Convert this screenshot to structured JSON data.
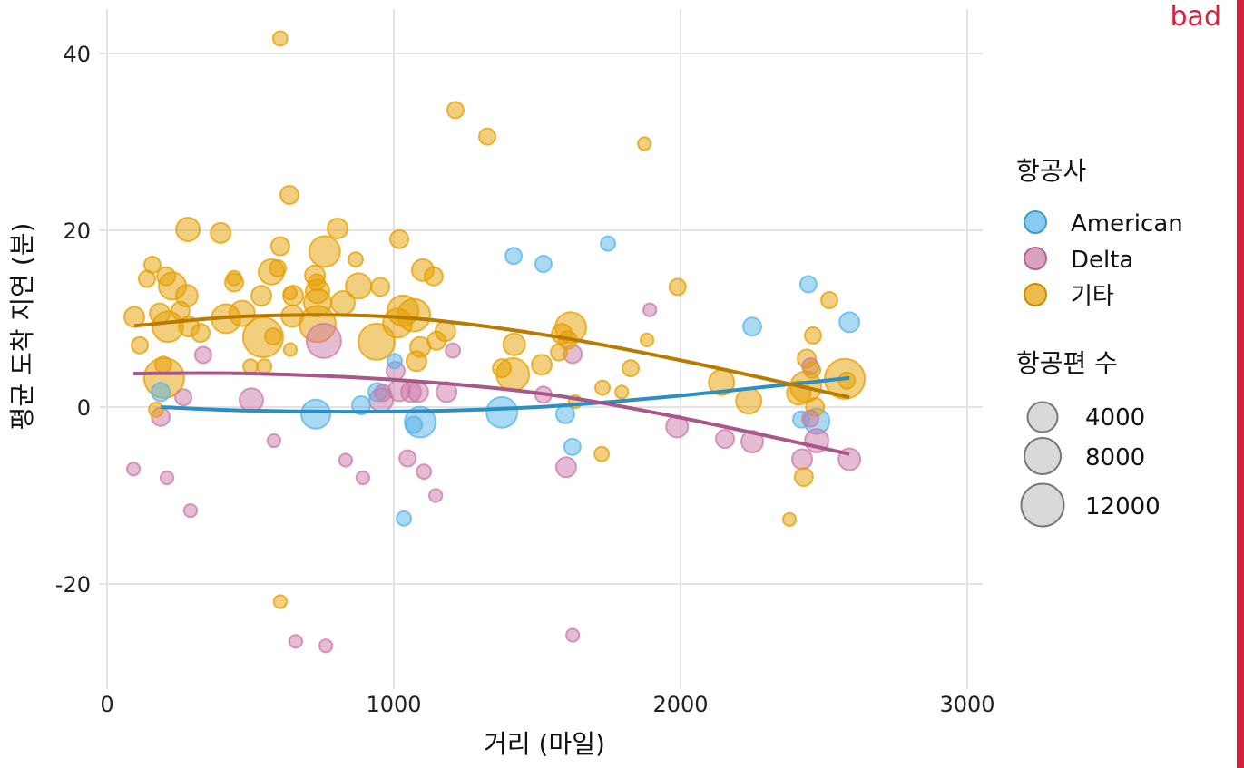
{
  "badge": {
    "label": "bad",
    "color": "#d32240"
  },
  "chart_data": {
    "type": "scatter",
    "title": "",
    "xlabel": "거리 (마일)",
    "ylabel": "평균 도착 지연 (분)",
    "xlim": [
      -25,
      3050
    ],
    "ylim": [
      -31,
      45
    ],
    "xticks": [
      0,
      1000,
      2000,
      3000
    ],
    "yticks": [
      -20,
      0,
      20,
      40
    ],
    "xtick_labels": [
      "0",
      "1000",
      "2000",
      "3000"
    ],
    "ytick_labels": [
      "-20",
      "0",
      "20",
      "40"
    ],
    "grid": true,
    "legend_placement": "right",
    "color_legend": {
      "title": "항공사",
      "entries": [
        "American",
        "Delta",
        "기타"
      ]
    },
    "size_legend": {
      "title": "항공편 수",
      "values": [
        4000,
        8000,
        12000
      ],
      "labels": [
        "4000",
        "8000",
        "12000"
      ]
    },
    "series": [
      {
        "name": "American",
        "color": "#56B4E9",
        "line_color": "#2b8fc4",
        "points": [
          [
            187,
            1.7,
            625
          ],
          [
            728,
            -0.8,
            3900
          ],
          [
            886,
            0.2,
            625
          ],
          [
            943,
            1.7,
            625
          ],
          [
            1003,
            5.2,
            150
          ],
          [
            1035,
            -12.6,
            150
          ],
          [
            1070,
            -2,
            350
          ],
          [
            1092,
            -1.7,
            4700
          ],
          [
            1377,
            -0.6,
            4700
          ],
          [
            1418,
            17.1,
            350
          ],
          [
            1522,
            16.2,
            350
          ],
          [
            1598,
            -0.8,
            625
          ],
          [
            1623,
            -4.5,
            350
          ],
          [
            1747,
            18.5,
            150
          ],
          [
            2250,
            9.1,
            625
          ],
          [
            2446,
            13.9,
            350
          ],
          [
            2421,
            -1.4,
            350
          ],
          [
            2475,
            -1.6,
            2500
          ],
          [
            2589,
            9.6,
            980
          ]
        ],
        "trend": [
          [
            187,
            0
          ],
          [
            500,
            -0.4
          ],
          [
            1000,
            -0.5
          ],
          [
            1500,
            0
          ],
          [
            2000,
            1.3
          ],
          [
            2589,
            3.3
          ]
        ]
      },
      {
        "name": "Delta",
        "color": "#CC79A7",
        "line_color": "#a8578a",
        "points": [
          [
            92,
            -7,
            50
          ],
          [
            187,
            -1.1,
            625
          ],
          [
            209,
            -8,
            50
          ],
          [
            266,
            1.1,
            350
          ],
          [
            291,
            -11.7,
            50
          ],
          [
            335,
            5.9,
            350
          ],
          [
            503,
            0.8,
            1900
          ],
          [
            582,
            -3.8,
            50
          ],
          [
            658,
            -26.5,
            50
          ],
          [
            756,
            7.5,
            6600
          ],
          [
            763,
            -27,
            50
          ],
          [
            832,
            -6,
            50
          ],
          [
            892,
            -8,
            50
          ],
          [
            956,
            0.8,
            1900
          ],
          [
            962,
            1.6,
            350
          ],
          [
            1006,
            4.1,
            625
          ],
          [
            1019,
            1.9,
            1400
          ],
          [
            1048,
            -5.8,
            350
          ],
          [
            1060,
            1.7,
            980
          ],
          [
            1085,
            1.7,
            980
          ],
          [
            1105,
            -7.3,
            150
          ],
          [
            1146,
            -10,
            50
          ],
          [
            1184,
            1.7,
            980
          ],
          [
            1206,
            6.4,
            150
          ],
          [
            1522,
            1.4,
            350
          ],
          [
            1601,
            -6.8,
            980
          ],
          [
            1624,
            6,
            625
          ],
          [
            1624,
            -25.8,
            50
          ],
          [
            1893,
            11,
            50
          ],
          [
            1988,
            -2.2,
            1400
          ],
          [
            2155,
            -3.6,
            625
          ],
          [
            2250,
            -3.9,
            1400
          ],
          [
            2424,
            -5.9,
            980
          ],
          [
            2453,
            -1.3,
            350
          ],
          [
            2475,
            -3.8,
            1900
          ],
          [
            2453,
            4.6,
            350
          ],
          [
            2589,
            -5.9,
            1400
          ]
        ],
        "trend": [
          [
            92,
            3.8
          ],
          [
            500,
            3.8
          ],
          [
            1000,
            3.1
          ],
          [
            1500,
            1.6
          ],
          [
            2000,
            -1.2
          ],
          [
            2589,
            -5.3
          ]
        ]
      },
      {
        "name": "기타",
        "color": "#E69F00",
        "line_color": "#b97a00",
        "points": [
          [
            604,
            41.7,
            150
          ],
          [
            1215,
            33.6,
            350
          ],
          [
            1326,
            30.6,
            350
          ],
          [
            1874,
            29.8,
            50
          ],
          [
            636,
            24,
            625
          ],
          [
            282,
            20.1,
            1900
          ],
          [
            396,
            19.7,
            980
          ],
          [
            804,
            20.2,
            980
          ],
          [
            1019,
            19,
            625
          ],
          [
            604,
            18.2,
            625
          ],
          [
            759,
            17.6,
            4700
          ],
          [
            158,
            16.1,
            350
          ],
          [
            139,
            14.5,
            350
          ],
          [
            206,
            14.8,
            625
          ],
          [
            228,
            13.7,
            3200
          ],
          [
            278,
            12.6,
            1400
          ],
          [
            443,
            14.1,
            625
          ],
          [
            443,
            14.6,
            150
          ],
          [
            573,
            15.3,
            2500
          ],
          [
            595,
            15.7,
            350
          ],
          [
            725,
            14.9,
            980
          ],
          [
            731,
            14.1,
            350
          ],
          [
            734,
            13.1,
            1900
          ],
          [
            867,
            16.7,
            150
          ],
          [
            877,
            13.7,
            2500
          ],
          [
            953,
            13.6,
            625
          ],
          [
            1101,
            15.5,
            1400
          ],
          [
            1139,
            14.8,
            625
          ],
          [
            538,
            12.6,
            980
          ],
          [
            649,
            12.6,
            980
          ],
          [
            639,
            12.9,
            50
          ],
          [
            734,
            11.8,
            3200
          ],
          [
            823,
            11.8,
            1900
          ],
          [
            95,
            10.2,
            980
          ],
          [
            184,
            10.6,
            980
          ],
          [
            212,
            9.1,
            4700
          ],
          [
            285,
            9.1,
            980
          ],
          [
            256,
            10.9,
            625
          ],
          [
            326,
            8.4,
            625
          ],
          [
            415,
            10,
            3900
          ],
          [
            471,
            10.6,
            2500
          ],
          [
            544,
            7.9,
            10000
          ],
          [
            646,
            10.3,
            1400
          ],
          [
            734,
            9.4,
            7650
          ],
          [
            940,
            7.4,
            7650
          ],
          [
            1013,
            9.5,
            3900
          ],
          [
            1032,
            10.9,
            4700
          ],
          [
            1070,
            10.4,
            5600
          ],
          [
            1092,
            6.8,
            980
          ],
          [
            1079,
            5.2,
            980
          ],
          [
            1180,
            8.6,
            980
          ],
          [
            1149,
            7.5,
            625
          ],
          [
            579,
            8,
            350
          ],
          [
            639,
            6.5,
            50
          ],
          [
            114,
            7,
            350
          ],
          [
            199,
            3.3,
            10000
          ],
          [
            196,
            4.8,
            350
          ],
          [
            171,
            -0.3,
            150
          ],
          [
            500,
            4.6,
            150
          ],
          [
            548,
            4.6,
            150
          ],
          [
            1420,
            7.1,
            1400
          ],
          [
            1377,
            4.4,
            625
          ],
          [
            1415,
            3.7,
            5600
          ],
          [
            1516,
            4.8,
            980
          ],
          [
            1617,
            9,
            4700
          ],
          [
            1586,
            8.3,
            980
          ],
          [
            1607,
            7.6,
            625
          ],
          [
            1576,
            6.2,
            350
          ],
          [
            1633,
            0.6,
            50
          ],
          [
            1728,
            2.2,
            150
          ],
          [
            1725,
            -5.3,
            150
          ],
          [
            1795,
            1.7,
            50
          ],
          [
            1826,
            4.4,
            350
          ],
          [
            1883,
            7.6,
            50
          ],
          [
            1990,
            13.6,
            350
          ],
          [
            2143,
            2.8,
            2500
          ],
          [
            2238,
            0.7,
            2500
          ],
          [
            2380,
            -12.7,
            50
          ],
          [
            2430,
            -7.9,
            625
          ],
          [
            2440,
            5.5,
            625
          ],
          [
            2462,
            8.1,
            350
          ],
          [
            2519,
            12.1,
            350
          ],
          [
            2459,
            4.2,
            350
          ],
          [
            2412,
            1.6,
            1900
          ],
          [
            2437,
            2.3,
            4700
          ],
          [
            2469,
            0,
            625
          ],
          [
            2573,
            3.2,
            10000
          ],
          [
            2580,
            3,
            350
          ],
          [
            604,
            -22,
            50
          ]
        ],
        "trend": [
          [
            95,
            9.2
          ],
          [
            500,
            10.3
          ],
          [
            1000,
            10.2
          ],
          [
            1500,
            8.3
          ],
          [
            2000,
            5.3
          ],
          [
            2589,
            1.1
          ]
        ]
      }
    ]
  }
}
